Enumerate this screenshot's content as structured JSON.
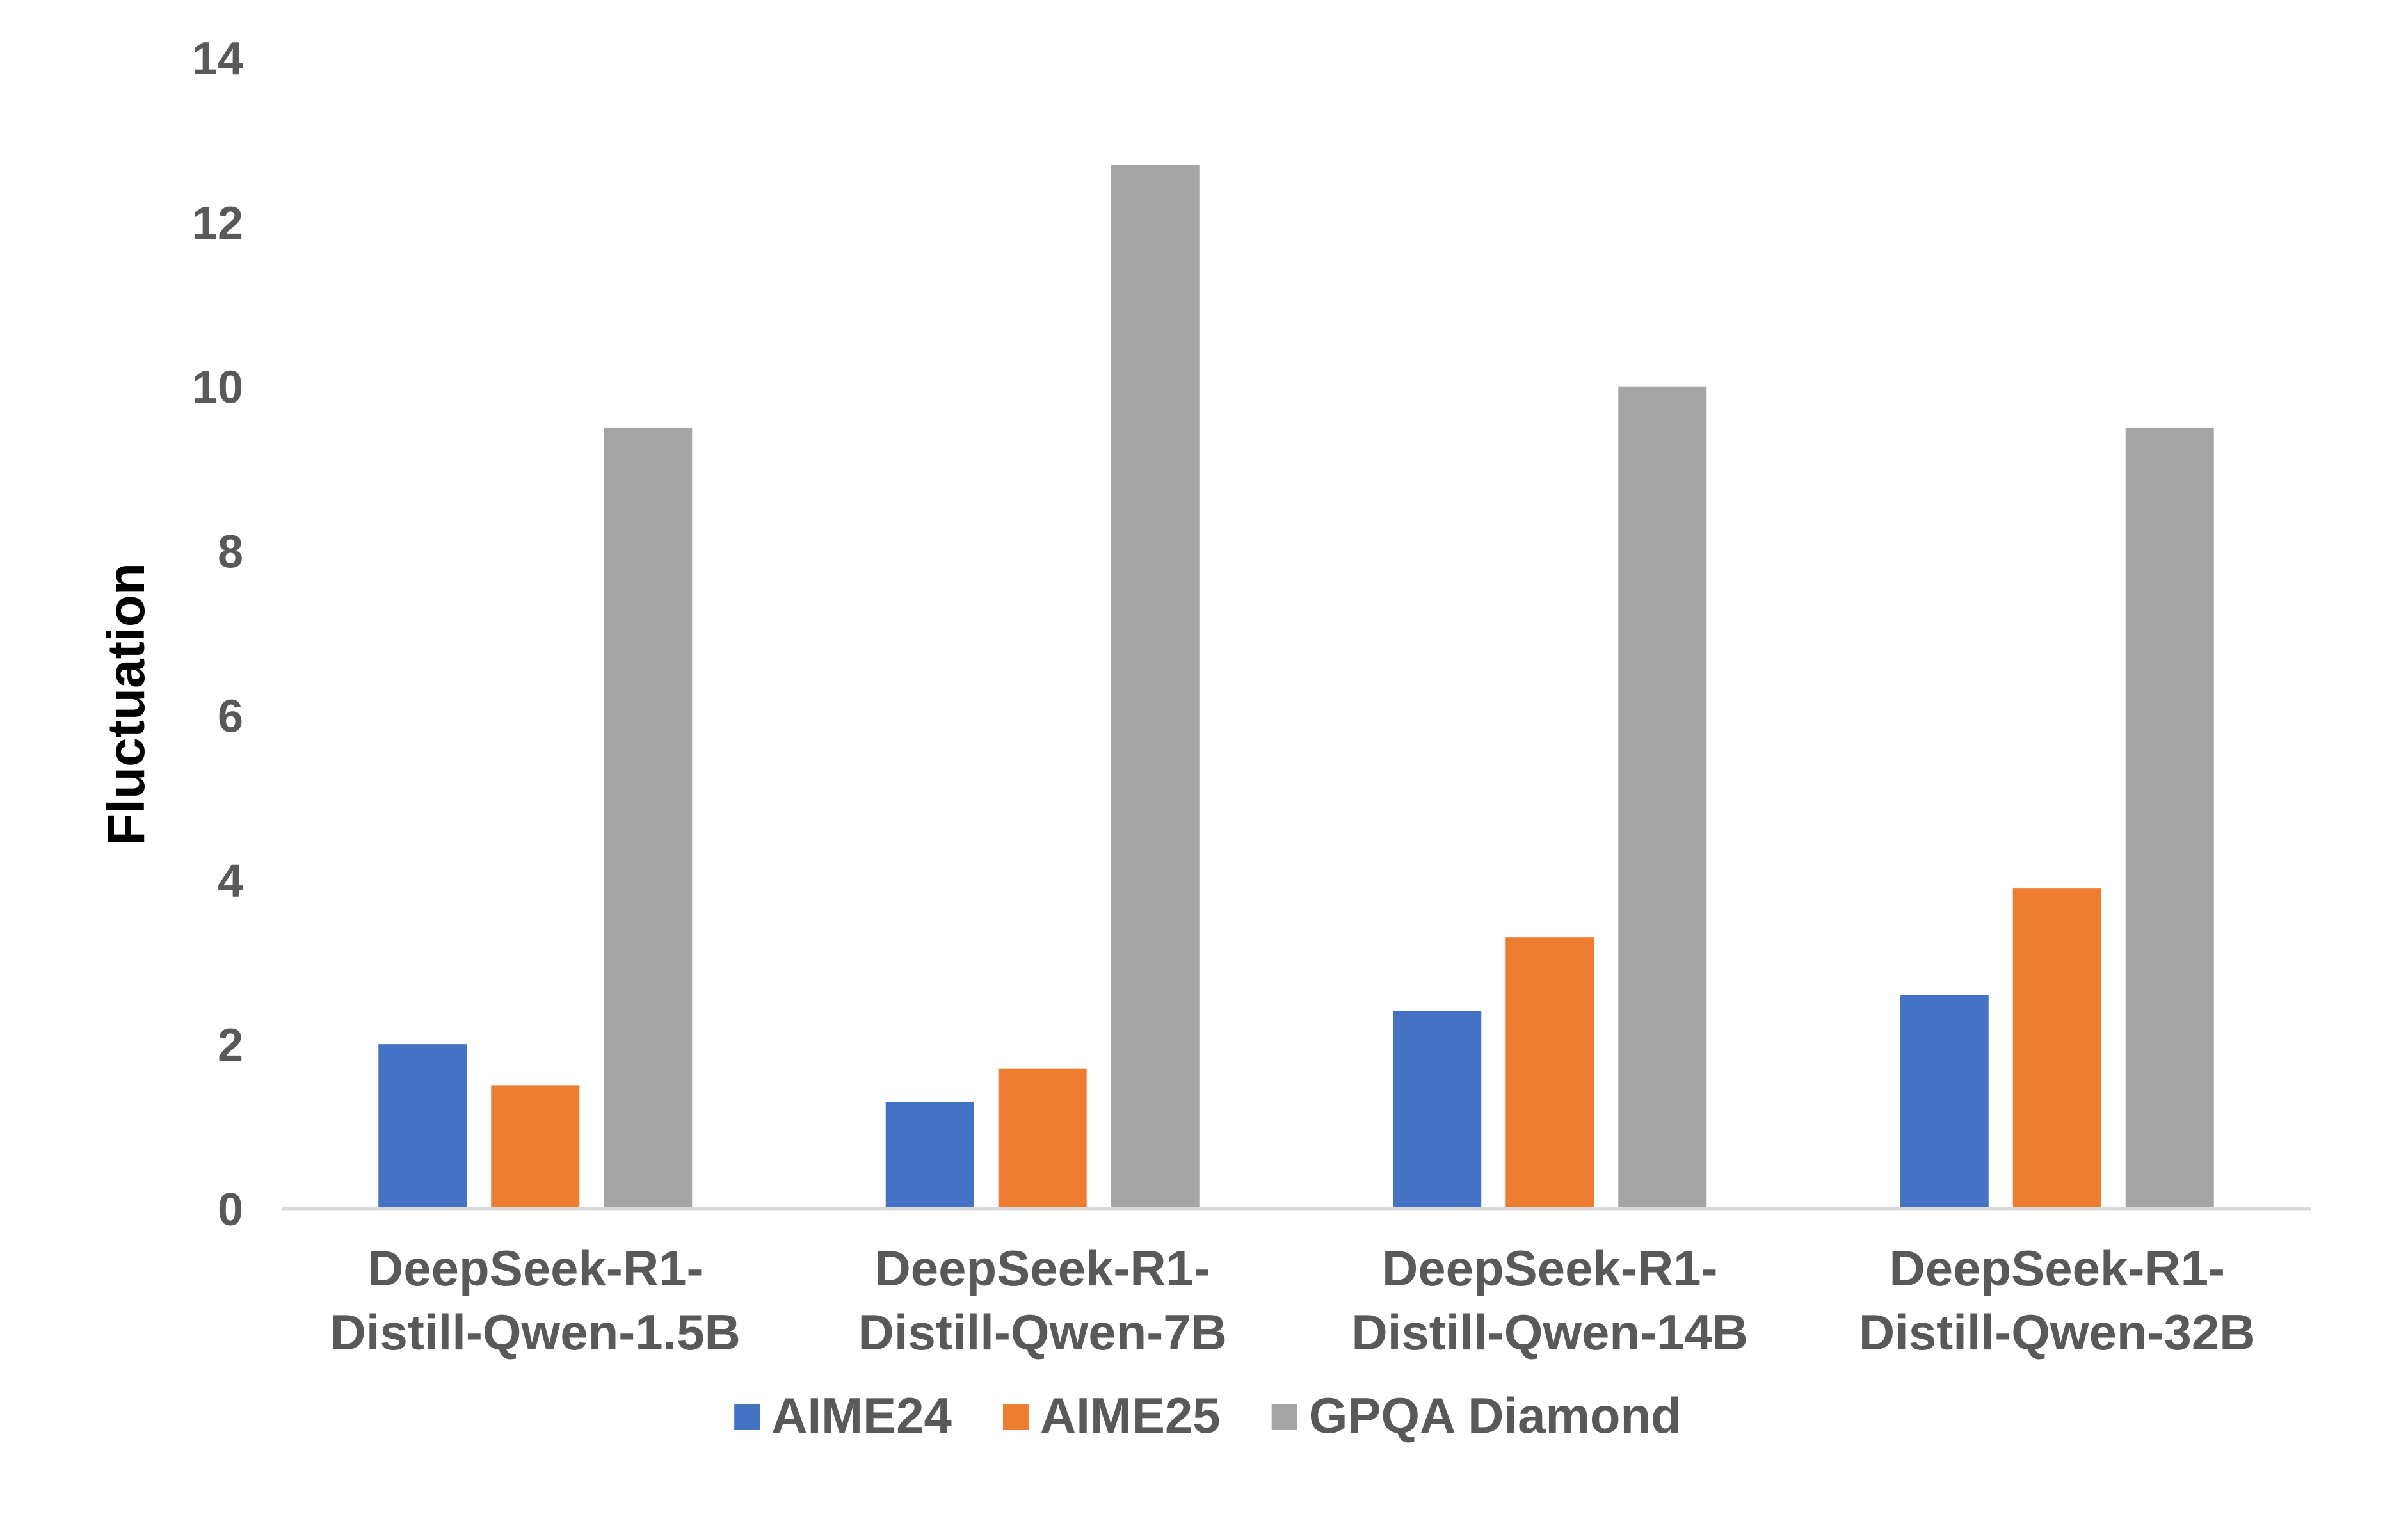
{
  "chart_data": {
    "type": "bar",
    "title": "",
    "xlabel": "",
    "ylabel": "Fluctuation",
    "ylim": [
      0,
      14
    ],
    "yticks": [
      0,
      2,
      4,
      6,
      8,
      10,
      12,
      14
    ],
    "grid": false,
    "legend_position": "bottom",
    "categories": [
      [
        "DeepSeek-R1-",
        "Distill-Qwen-1.5B"
      ],
      [
        "DeepSeek-R1-",
        "Distill-Qwen-7B"
      ],
      [
        "DeepSeek-R1-",
        "Distill-Qwen-14B"
      ],
      [
        "DeepSeek-R1-",
        "Distill-Qwen-32B"
      ]
    ],
    "series": [
      {
        "name": "AIME24",
        "color": "#4472C4",
        "values": [
          2.0,
          1.3,
          2.4,
          2.6
        ]
      },
      {
        "name": "AIME25",
        "color": "#ED7D31",
        "values": [
          1.5,
          1.7,
          3.3,
          3.9
        ]
      },
      {
        "name": "GPQA Diamond",
        "color": "#A5A5A5",
        "values": [
          9.5,
          12.7,
          10.0,
          9.5
        ]
      }
    ]
  }
}
